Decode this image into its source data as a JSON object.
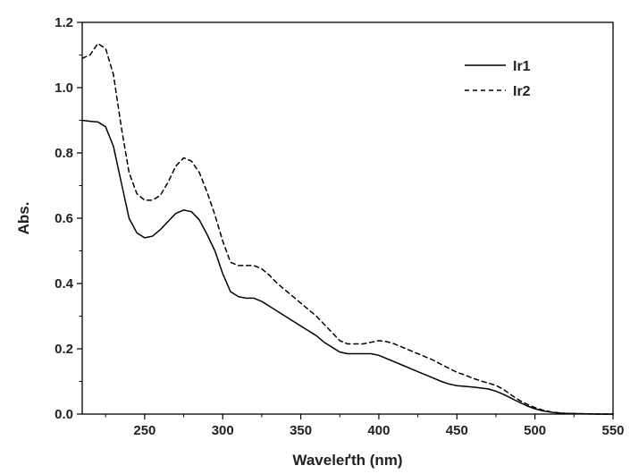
{
  "chart_data": {
    "type": "line",
    "xlabel": "Waveleґth (nm)",
    "ylabel": "Abs.",
    "xlim": [
      210,
      550
    ],
    "ylim": [
      0.0,
      1.2
    ],
    "x_ticks": [
      "250",
      "300",
      "350",
      "400",
      "450",
      "500",
      "550"
    ],
    "y_ticks": [
      "0.0",
      "0.2",
      "0.4",
      "0.6",
      "0.8",
      "1.0",
      "1.2"
    ],
    "grid": false,
    "legend_position": "top-right",
    "series": [
      {
        "name": "Ir1",
        "line_style": "solid",
        "color": "#000000",
        "points": [
          [
            210,
            0.9
          ],
          [
            215,
            0.897
          ],
          [
            220,
            0.895
          ],
          [
            225,
            0.88
          ],
          [
            230,
            0.82
          ],
          [
            235,
            0.71
          ],
          [
            240,
            0.6
          ],
          [
            245,
            0.555
          ],
          [
            250,
            0.54
          ],
          [
            255,
            0.545
          ],
          [
            260,
            0.565
          ],
          [
            265,
            0.59
          ],
          [
            270,
            0.615
          ],
          [
            275,
            0.625
          ],
          [
            280,
            0.62
          ],
          [
            285,
            0.595
          ],
          [
            290,
            0.55
          ],
          [
            295,
            0.5
          ],
          [
            300,
            0.43
          ],
          [
            305,
            0.375
          ],
          [
            310,
            0.36
          ],
          [
            315,
            0.355
          ],
          [
            320,
            0.355
          ],
          [
            325,
            0.345
          ],
          [
            330,
            0.33
          ],
          [
            335,
            0.315
          ],
          [
            340,
            0.3
          ],
          [
            345,
            0.285
          ],
          [
            350,
            0.27
          ],
          [
            355,
            0.255
          ],
          [
            360,
            0.24
          ],
          [
            365,
            0.22
          ],
          [
            370,
            0.205
          ],
          [
            375,
            0.19
          ],
          [
            380,
            0.185
          ],
          [
            385,
            0.185
          ],
          [
            390,
            0.185
          ],
          [
            395,
            0.185
          ],
          [
            400,
            0.18
          ],
          [
            405,
            0.17
          ],
          [
            410,
            0.16
          ],
          [
            415,
            0.15
          ],
          [
            420,
            0.14
          ],
          [
            425,
            0.13
          ],
          [
            430,
            0.12
          ],
          [
            435,
            0.11
          ],
          [
            440,
            0.1
          ],
          [
            445,
            0.092
          ],
          [
            450,
            0.087
          ],
          [
            455,
            0.085
          ],
          [
            460,
            0.083
          ],
          [
            465,
            0.08
          ],
          [
            470,
            0.077
          ],
          [
            475,
            0.07
          ],
          [
            480,
            0.06
          ],
          [
            485,
            0.048
          ],
          [
            490,
            0.036
          ],
          [
            495,
            0.025
          ],
          [
            500,
            0.016
          ],
          [
            505,
            0.01
          ],
          [
            510,
            0.006
          ],
          [
            515,
            0.003
          ],
          [
            520,
            0.002
          ],
          [
            530,
            0.001
          ],
          [
            540,
            0.0
          ],
          [
            550,
            0.0
          ]
        ]
      },
      {
        "name": "Ir2",
        "line_style": "dashed",
        "color": "#000000",
        "points": [
          [
            210,
            1.09
          ],
          [
            215,
            1.1
          ],
          [
            220,
            1.135
          ],
          [
            225,
            1.12
          ],
          [
            230,
            1.04
          ],
          [
            235,
            0.88
          ],
          [
            240,
            0.74
          ],
          [
            245,
            0.675
          ],
          [
            250,
            0.655
          ],
          [
            255,
            0.655
          ],
          [
            260,
            0.67
          ],
          [
            265,
            0.71
          ],
          [
            270,
            0.76
          ],
          [
            275,
            0.785
          ],
          [
            280,
            0.775
          ],
          [
            285,
            0.74
          ],
          [
            290,
            0.68
          ],
          [
            295,
            0.61
          ],
          [
            300,
            0.53
          ],
          [
            305,
            0.465
          ],
          [
            310,
            0.455
          ],
          [
            315,
            0.455
          ],
          [
            320,
            0.455
          ],
          [
            325,
            0.445
          ],
          [
            330,
            0.425
          ],
          [
            335,
            0.4
          ],
          [
            340,
            0.38
          ],
          [
            345,
            0.36
          ],
          [
            350,
            0.34
          ],
          [
            355,
            0.32
          ],
          [
            360,
            0.3
          ],
          [
            365,
            0.275
          ],
          [
            370,
            0.25
          ],
          [
            375,
            0.225
          ],
          [
            380,
            0.215
          ],
          [
            385,
            0.215
          ],
          [
            390,
            0.215
          ],
          [
            395,
            0.22
          ],
          [
            400,
            0.225
          ],
          [
            405,
            0.222
          ],
          [
            410,
            0.215
          ],
          [
            415,
            0.205
          ],
          [
            420,
            0.195
          ],
          [
            425,
            0.185
          ],
          [
            430,
            0.175
          ],
          [
            435,
            0.165
          ],
          [
            440,
            0.152
          ],
          [
            445,
            0.14
          ],
          [
            450,
            0.128
          ],
          [
            455,
            0.12
          ],
          [
            460,
            0.11
          ],
          [
            465,
            0.102
          ],
          [
            470,
            0.095
          ],
          [
            475,
            0.088
          ],
          [
            480,
            0.075
          ],
          [
            485,
            0.058
          ],
          [
            490,
            0.042
          ],
          [
            495,
            0.03
          ],
          [
            500,
            0.02
          ],
          [
            505,
            0.012
          ],
          [
            510,
            0.007
          ],
          [
            515,
            0.004
          ],
          [
            520,
            0.002
          ],
          [
            530,
            0.001
          ],
          [
            540,
            0.0
          ],
          [
            550,
            0.0
          ]
        ]
      }
    ]
  }
}
